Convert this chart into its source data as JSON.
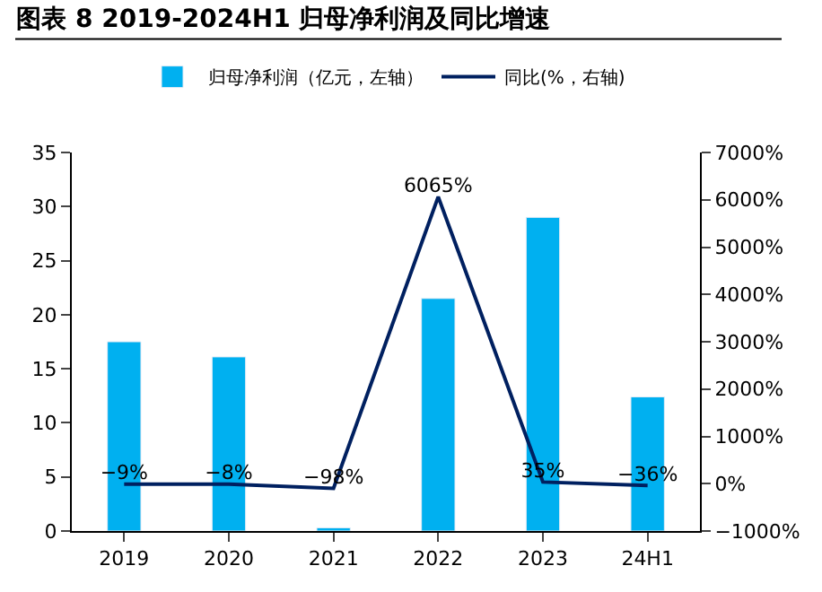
{
  "chart_data": {
    "type": "bar",
    "title": "图表 8 2019-2024H1 归母净利润及同比增速",
    "categories": [
      "2019",
      "2020",
      "2021",
      "2022",
      "2023",
      "24H1"
    ],
    "series": [
      {
        "name": "归母净利润（亿元，左轴）",
        "color": "#00b0f0",
        "values": [
          17.5,
          16.1,
          0.3,
          21.5,
          29.0,
          12.4
        ]
      },
      {
        "name": "同比(%，右轴)",
        "type": "line",
        "axis": "y2",
        "color": "#002060",
        "values": [
          -9,
          -8,
          -98,
          6065,
          35,
          -36
        ],
        "value_labels": [
          "−9%",
          "−8%",
          "−98%",
          "6065%",
          "35%",
          "−36%"
        ]
      }
    ],
    "ylim": [
      0,
      35
    ],
    "yticks": [
      0,
      5,
      10,
      15,
      20,
      25,
      30,
      35
    ],
    "y2lim": [
      -1000,
      7000
    ],
    "y2ticks": [
      {
        "value": -1000,
        "label": "−1000%"
      },
      {
        "value": 0,
        "label": "0%"
      },
      {
        "value": 1000,
        "label": "1000%"
      },
      {
        "value": 2000,
        "label": "2000%"
      },
      {
        "value": 3000,
        "label": "3000%"
      },
      {
        "value": 4000,
        "label": "4000%"
      },
      {
        "value": 5000,
        "label": "5000%"
      },
      {
        "value": 6000,
        "label": "6000%"
      },
      {
        "value": 7000,
        "label": "7000%"
      }
    ],
    "legend": "top",
    "marker": "none"
  }
}
